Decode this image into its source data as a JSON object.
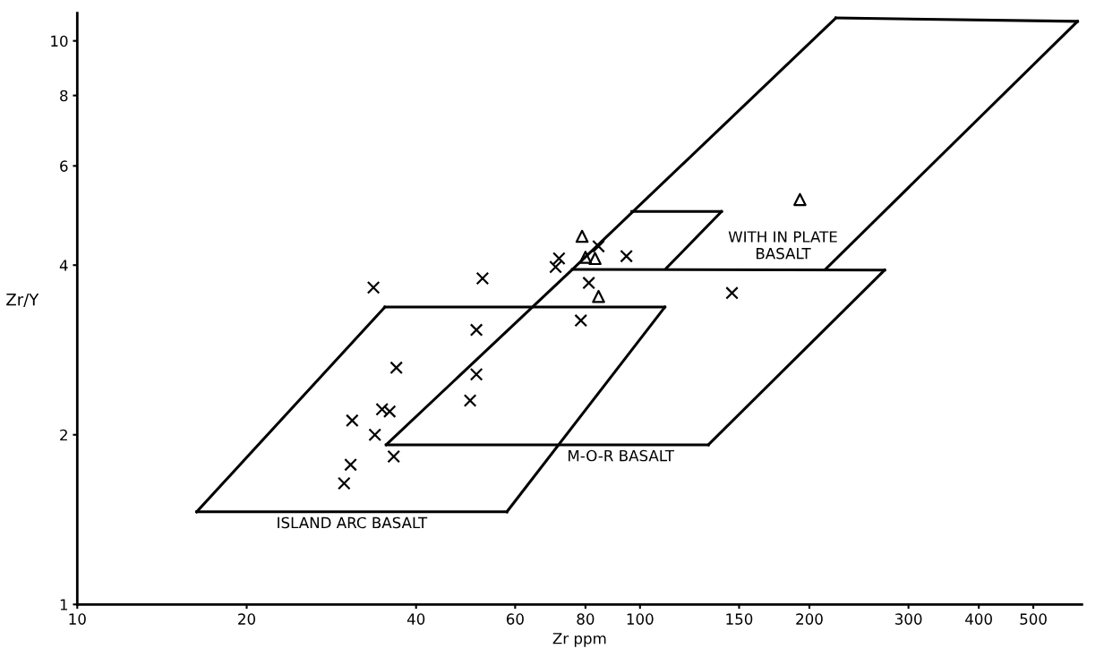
{
  "chart_data": {
    "type": "line",
    "xlabel": "Zr ppm",
    "ylabel": "Zr/Y",
    "log": "xy",
    "grid": false,
    "legend": false,
    "xlim": [
      10,
      610
    ],
    "ylim": [
      1,
      11.2
    ],
    "xticks": [
      10,
      20,
      40,
      60,
      80,
      100,
      150,
      200,
      300,
      400,
      500
    ],
    "yticks": [
      1,
      2,
      4,
      6,
      8,
      10
    ],
    "series": [
      {
        "name": "ISLAND ARC BASALT",
        "color": "#000000",
        "marker": "none",
        "line_style": "solid",
        "x": [
          16.3,
          58.0
        ],
        "values": [
          1.46,
          1.46
        ]
      },
      {
        "color": "#000000",
        "marker": "none",
        "line_style": "solid",
        "x": [
          58.0,
          110.7
        ],
        "values": [
          1.46,
          3.37
        ]
      },
      {
        "color": "#000000",
        "marker": "none",
        "line_style": "solid",
        "x": [
          35.2,
          110.7
        ],
        "values": [
          3.37,
          3.37
        ]
      },
      {
        "color": "#000000",
        "marker": "none",
        "line_style": "solid",
        "x": [
          16.3,
          35.2
        ],
        "values": [
          1.46,
          3.37
        ]
      },
      {
        "name": "M-O-R BASALT",
        "color": "#000000",
        "marker": "none",
        "line_style": "solid",
        "x": [
          35.4,
          132.3
        ],
        "values": [
          1.92,
          1.92
        ]
      },
      {
        "color": "#000000",
        "marker": "none",
        "line_style": "solid",
        "x": [
          132.3,
          272.1
        ],
        "values": [
          1.92,
          3.92
        ]
      },
      {
        "name": "WITH IN PLATE\nBASALT",
        "color": "#000000",
        "marker": "none",
        "line_style": "solid",
        "x": [
          75.8,
          272.1
        ],
        "values": [
          3.93,
          3.92
        ]
      },
      {
        "color": "#000000",
        "marker": "none",
        "line_style": "solid",
        "x": [
          35.4,
          75.8,
          222.8
        ],
        "values": [
          1.92,
          3.93,
          10.98
        ]
      },
      {
        "color": "#000000",
        "marker": "none",
        "line_style": "solid",
        "x": [
          213.4,
          599
        ],
        "values": [
          3.93,
          10.83
        ]
      },
      {
        "color": "#000000",
        "marker": "none",
        "line_style": "solid",
        "x": [
          222.8,
          599
        ],
        "values": [
          10.98,
          10.83
        ]
      },
      {
        "color": "#000000",
        "marker": "none",
        "line_style": "solid",
        "x": [
          96.7,
          139.6
        ],
        "values": [
          4.98,
          4.98
        ]
      },
      {
        "color": "#000000",
        "marker": "none",
        "line_style": "solid",
        "x": [
          111.4,
          139.6
        ],
        "values": [
          3.95,
          4.98
        ]
      },
      {
        "type": "scatter",
        "color": "#000000",
        "marker": "cross",
        "x": [
          33.6,
          52.5,
          51.2,
          36.9,
          51.2,
          49.9,
          34.8,
          35.9,
          30.8,
          33.8,
          36.5,
          30.6,
          29.8,
          84.4,
          71.8,
          70.8,
          94.6,
          81.1,
          78.5,
          145.7
        ],
        "values": [
          3.65,
          3.79,
          3.07,
          2.63,
          2.56,
          2.3,
          2.22,
          2.2,
          2.12,
          2.0,
          1.83,
          1.77,
          1.64,
          4.32,
          4.11,
          3.97,
          4.15,
          3.72,
          3.19,
          3.57
        ]
      },
      {
        "type": "scatter",
        "color": "#000000",
        "marker": "triangle",
        "x": [
          78.9,
          80.0,
          83.2,
          84.4,
          192.4
        ],
        "values": [
          4.5,
          4.13,
          4.11,
          3.52,
          5.23
        ]
      }
    ]
  }
}
